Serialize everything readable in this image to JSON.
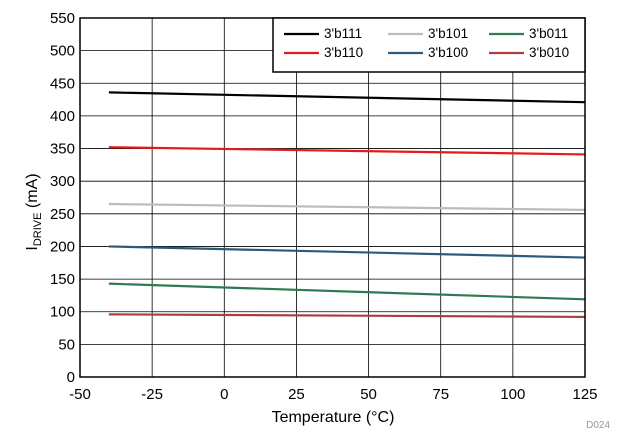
{
  "chart_data": {
    "type": "line",
    "xlabel": "Temperature (°C)",
    "ylabel_main": "I",
    "ylabel_sub": "DRIVE",
    "ylabel_unit": " (mA)",
    "xlim": [
      -50,
      125
    ],
    "ylim": [
      0,
      550
    ],
    "xticks": [
      -50,
      -25,
      0,
      25,
      50,
      75,
      100,
      125
    ],
    "yticks": [
      0,
      50,
      100,
      150,
      200,
      250,
      300,
      350,
      400,
      450,
      500,
      550
    ],
    "grid": true,
    "legend_position": "top-right",
    "series": [
      {
        "name": "3'b111",
        "color": "#000000",
        "x": [
          -40,
          125
        ],
        "y": [
          436,
          421
        ]
      },
      {
        "name": "3'b101",
        "color": "#bcbcbc",
        "x": [
          -40,
          125
        ],
        "y": [
          265,
          256
        ]
      },
      {
        "name": "3'b011",
        "color": "#2e7a52",
        "x": [
          -40,
          125
        ],
        "y": [
          143,
          119
        ]
      },
      {
        "name": "3'b110",
        "color": "#e8191b",
        "x": [
          -40,
          125
        ],
        "y": [
          352,
          341
        ]
      },
      {
        "name": "3'b100",
        "color": "#2d5a7b",
        "x": [
          -40,
          125
        ],
        "y": [
          200,
          183
        ]
      },
      {
        "name": "3'b010",
        "color": "#a84040",
        "x": [
          -40,
          125
        ],
        "y": [
          96,
          92
        ]
      }
    ],
    "code": "D024"
  }
}
